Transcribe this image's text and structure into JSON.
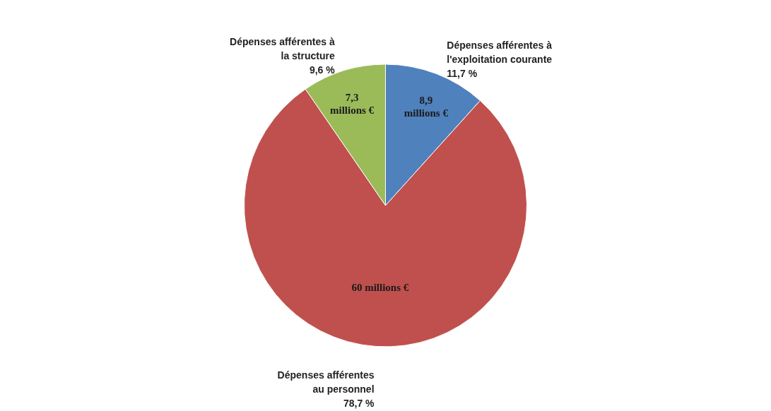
{
  "chart_data": {
    "type": "pie",
    "categories": [
      "Dépenses afférentes à l'exploitation courante",
      "Dépenses afférentes au personnel",
      "Dépenses afférentes à la structure"
    ],
    "values": [
      8.9,
      60,
      7.3
    ],
    "colors": [
      "#4f81bd",
      "#c0504d",
      "#9bbb59"
    ],
    "value_labels": [
      "8,9 millions €",
      "60 millions €",
      "7,3 millions €"
    ],
    "annotations": [
      "11,7 %",
      "78,7 %",
      "9,6 %"
    ],
    "legend": false
  }
}
